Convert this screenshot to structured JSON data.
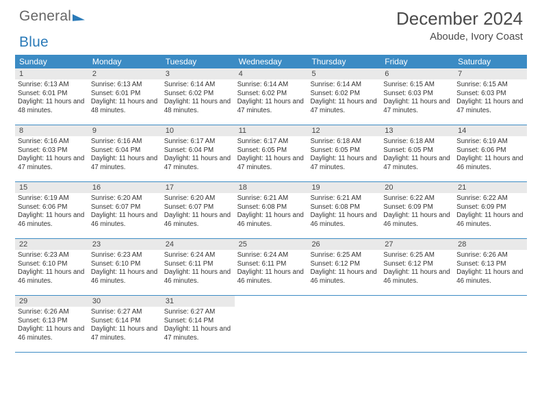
{
  "logo": {
    "part1": "General",
    "part2": "Blue"
  },
  "title": "December 2024",
  "location": "Aboude, Ivory Coast",
  "colors": {
    "header_bg": "#3b8bc4",
    "number_bg": "#e9e9e9",
    "rule": "#3b8bc4",
    "logo_blue": "#2a7ab8"
  },
  "day_headers": [
    "Sunday",
    "Monday",
    "Tuesday",
    "Wednesday",
    "Thursday",
    "Friday",
    "Saturday"
  ],
  "weeks": [
    [
      {
        "n": "1",
        "sunrise": "6:13 AM",
        "sunset": "6:01 PM",
        "daylight": "11 hours and 48 minutes."
      },
      {
        "n": "2",
        "sunrise": "6:13 AM",
        "sunset": "6:01 PM",
        "daylight": "11 hours and 48 minutes."
      },
      {
        "n": "3",
        "sunrise": "6:14 AM",
        "sunset": "6:02 PM",
        "daylight": "11 hours and 48 minutes."
      },
      {
        "n": "4",
        "sunrise": "6:14 AM",
        "sunset": "6:02 PM",
        "daylight": "11 hours and 47 minutes."
      },
      {
        "n": "5",
        "sunrise": "6:14 AM",
        "sunset": "6:02 PM",
        "daylight": "11 hours and 47 minutes."
      },
      {
        "n": "6",
        "sunrise": "6:15 AM",
        "sunset": "6:03 PM",
        "daylight": "11 hours and 47 minutes."
      },
      {
        "n": "7",
        "sunrise": "6:15 AM",
        "sunset": "6:03 PM",
        "daylight": "11 hours and 47 minutes."
      }
    ],
    [
      {
        "n": "8",
        "sunrise": "6:16 AM",
        "sunset": "6:03 PM",
        "daylight": "11 hours and 47 minutes."
      },
      {
        "n": "9",
        "sunrise": "6:16 AM",
        "sunset": "6:04 PM",
        "daylight": "11 hours and 47 minutes."
      },
      {
        "n": "10",
        "sunrise": "6:17 AM",
        "sunset": "6:04 PM",
        "daylight": "11 hours and 47 minutes."
      },
      {
        "n": "11",
        "sunrise": "6:17 AM",
        "sunset": "6:05 PM",
        "daylight": "11 hours and 47 minutes."
      },
      {
        "n": "12",
        "sunrise": "6:18 AM",
        "sunset": "6:05 PM",
        "daylight": "11 hours and 47 minutes."
      },
      {
        "n": "13",
        "sunrise": "6:18 AM",
        "sunset": "6:05 PM",
        "daylight": "11 hours and 47 minutes."
      },
      {
        "n": "14",
        "sunrise": "6:19 AM",
        "sunset": "6:06 PM",
        "daylight": "11 hours and 46 minutes."
      }
    ],
    [
      {
        "n": "15",
        "sunrise": "6:19 AM",
        "sunset": "6:06 PM",
        "daylight": "11 hours and 46 minutes."
      },
      {
        "n": "16",
        "sunrise": "6:20 AM",
        "sunset": "6:07 PM",
        "daylight": "11 hours and 46 minutes."
      },
      {
        "n": "17",
        "sunrise": "6:20 AM",
        "sunset": "6:07 PM",
        "daylight": "11 hours and 46 minutes."
      },
      {
        "n": "18",
        "sunrise": "6:21 AM",
        "sunset": "6:08 PM",
        "daylight": "11 hours and 46 minutes."
      },
      {
        "n": "19",
        "sunrise": "6:21 AM",
        "sunset": "6:08 PM",
        "daylight": "11 hours and 46 minutes."
      },
      {
        "n": "20",
        "sunrise": "6:22 AM",
        "sunset": "6:09 PM",
        "daylight": "11 hours and 46 minutes."
      },
      {
        "n": "21",
        "sunrise": "6:22 AM",
        "sunset": "6:09 PM",
        "daylight": "11 hours and 46 minutes."
      }
    ],
    [
      {
        "n": "22",
        "sunrise": "6:23 AM",
        "sunset": "6:10 PM",
        "daylight": "11 hours and 46 minutes."
      },
      {
        "n": "23",
        "sunrise": "6:23 AM",
        "sunset": "6:10 PM",
        "daylight": "11 hours and 46 minutes."
      },
      {
        "n": "24",
        "sunrise": "6:24 AM",
        "sunset": "6:11 PM",
        "daylight": "11 hours and 46 minutes."
      },
      {
        "n": "25",
        "sunrise": "6:24 AM",
        "sunset": "6:11 PM",
        "daylight": "11 hours and 46 minutes."
      },
      {
        "n": "26",
        "sunrise": "6:25 AM",
        "sunset": "6:12 PM",
        "daylight": "11 hours and 46 minutes."
      },
      {
        "n": "27",
        "sunrise": "6:25 AM",
        "sunset": "6:12 PM",
        "daylight": "11 hours and 46 minutes."
      },
      {
        "n": "28",
        "sunrise": "6:26 AM",
        "sunset": "6:13 PM",
        "daylight": "11 hours and 46 minutes."
      }
    ],
    [
      {
        "n": "29",
        "sunrise": "6:26 AM",
        "sunset": "6:13 PM",
        "daylight": "11 hours and 46 minutes."
      },
      {
        "n": "30",
        "sunrise": "6:27 AM",
        "sunset": "6:14 PM",
        "daylight": "11 hours and 47 minutes."
      },
      {
        "n": "31",
        "sunrise": "6:27 AM",
        "sunset": "6:14 PM",
        "daylight": "11 hours and 47 minutes."
      },
      null,
      null,
      null,
      null
    ]
  ],
  "labels": {
    "sunrise": "Sunrise:",
    "sunset": "Sunset:",
    "daylight": "Daylight:"
  }
}
